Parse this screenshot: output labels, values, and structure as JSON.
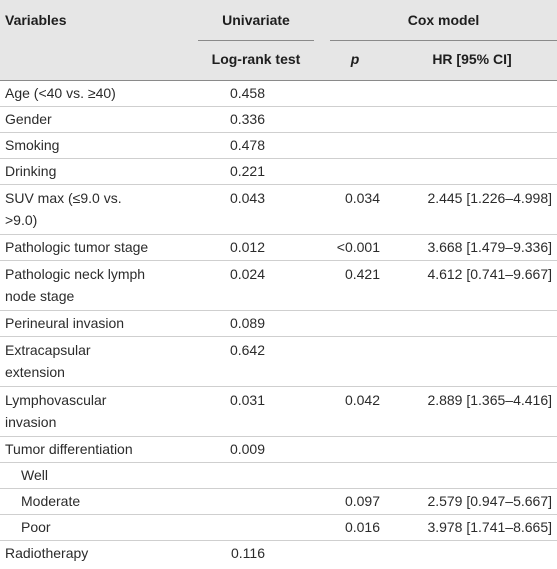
{
  "header": {
    "variables": "Variables",
    "univariate": "Univariate",
    "cox_model": "Cox model",
    "log_rank": "Log-rank test",
    "p": "p",
    "hr": "HR [95% CI]"
  },
  "rows": [
    {
      "var": [
        "Age (<40 vs. ≥40)"
      ],
      "lr": "0.458",
      "p": "",
      "hr": ""
    },
    {
      "var": [
        "Gender"
      ],
      "lr": "0.336",
      "p": "",
      "hr": ""
    },
    {
      "var": [
        "Smoking"
      ],
      "lr": "0.478",
      "p": "",
      "hr": ""
    },
    {
      "var": [
        "Drinking"
      ],
      "lr": "0.221",
      "p": "",
      "hr": ""
    },
    {
      "var": [
        "SUV max (≤9.0 vs.",
        ">9.0)"
      ],
      "lr": "0.043",
      "p": "0.034",
      "hr": "2.445 [1.226–4.998]"
    },
    {
      "var": [
        "Pathologic tumor stage"
      ],
      "lr": "0.012",
      "p": "<0.001",
      "hr": "3.668 [1.479–9.336]"
    },
    {
      "var": [
        "Pathologic neck lymph",
        "node stage"
      ],
      "lr": "0.024",
      "p": "0.421",
      "hr": "4.612 [0.741–9.667]"
    },
    {
      "var": [
        "Perineural invasion"
      ],
      "lr": "0.089",
      "p": "",
      "hr": ""
    },
    {
      "var": [
        "Extracapsular",
        "extension"
      ],
      "lr": "0.642",
      "p": "",
      "hr": ""
    },
    {
      "var": [
        "Lymphovascular",
        "invasion"
      ],
      "lr": "0.031",
      "p": "0.042",
      "hr": "2.889 [1.365–4.416]"
    },
    {
      "var": [
        "Tumor differentiation"
      ],
      "lr": "0.009",
      "p": "",
      "hr": ""
    },
    {
      "var": [
        "Well"
      ],
      "lr": "",
      "p": "",
      "hr": "",
      "sub": true
    },
    {
      "var": [
        "Moderate"
      ],
      "lr": "",
      "p": "0.097",
      "hr": "2.579 [0.947–5.667]",
      "sub": true
    },
    {
      "var": [
        "Poor"
      ],
      "lr": "",
      "p": "0.016",
      "hr": "3.978 [1.741–8.665]",
      "sub": true
    },
    {
      "var": [
        "Radiotherapy"
      ],
      "lr": "0.116",
      "p": "",
      "hr": ""
    }
  ]
}
